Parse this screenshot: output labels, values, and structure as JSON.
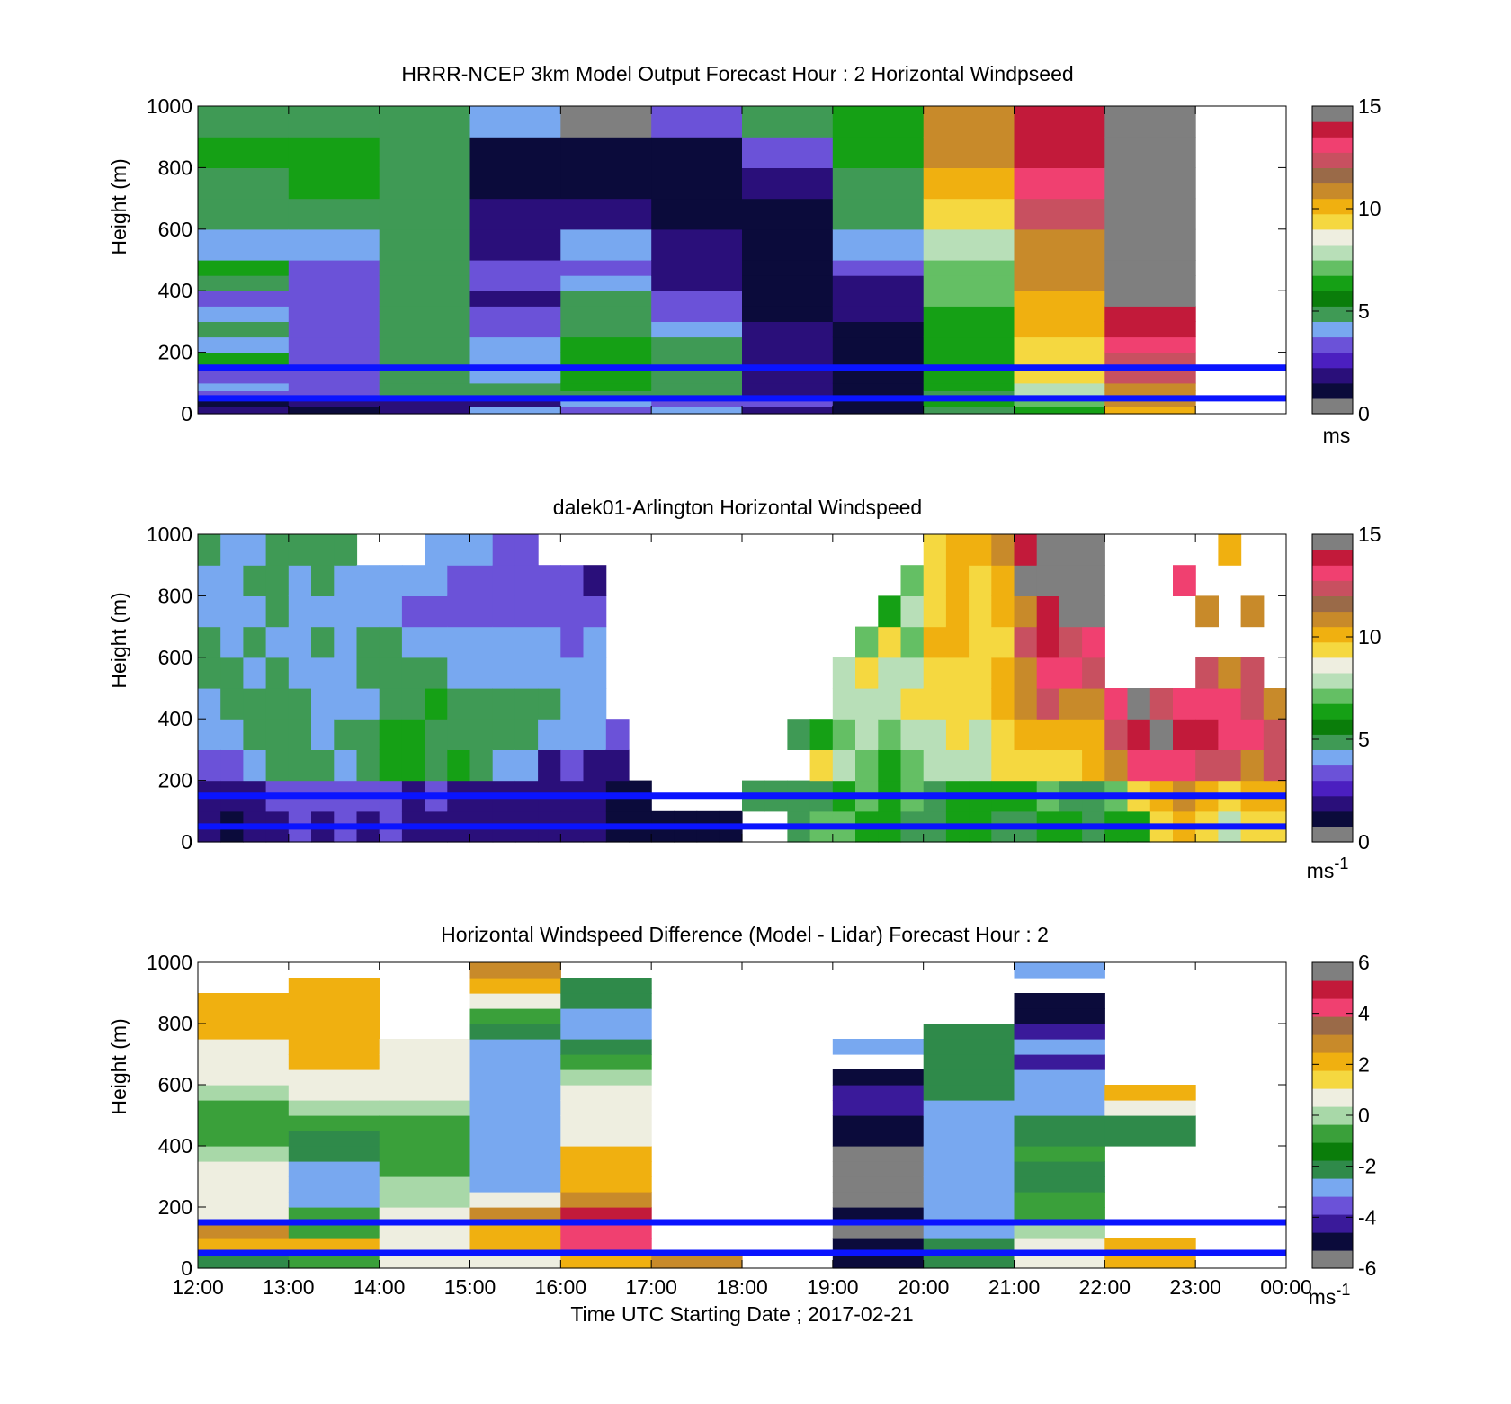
{
  "figure": {
    "x_axis_title": "Time UTC  Starting Date ; 2017-02-21",
    "x_tick_labels": [
      "12:00",
      "13:00",
      "14:00",
      "15:00",
      "16:00",
      "17:00",
      "18:00",
      "19:00",
      "20:00",
      "21:00",
      "22:00",
      "23:00",
      "00:00"
    ]
  },
  "colors": {
    "reference_line": "#0a14ff",
    "speed_colormap": [
      "#7f7f7f",
      "#0b0b3b",
      "#2a0f7a",
      "#4b1fc0",
      "#6b52d8",
      "#78a8f0",
      "#3f9a55",
      "#0a7d0a",
      "#15a015",
      "#64bf64",
      "#b8dfb8",
      "#eeeee0",
      "#f5d840",
      "#f0b010",
      "#c88a2a",
      "#9a6a48",
      "#c85060",
      "#f04070",
      "#c21a3a",
      "#7f7f7f"
    ],
    "diff_colormap": [
      "#7f7f7f",
      "#0b0b3b",
      "#3a1a9a",
      "#6b52d8",
      "#78a8f0",
      "#2f8a4a",
      "#0a7d0a",
      "#3aa03a",
      "#a8d8a8",
      "#eeeee0",
      "#f5d840",
      "#f0b010",
      "#c88a2a",
      "#9a6a48",
      "#f04070",
      "#c21a3a",
      "#7f7f7f"
    ]
  },
  "chart_data": [
    {
      "type": "heatmap",
      "title": "HRRR-NCEP 3km Model Output   Forecast Hour : 2 Horizontal Windpseed",
      "xlabel": "",
      "ylabel": "Height (m)",
      "xlim": [
        12,
        24
      ],
      "ylim": [
        0,
        1000
      ],
      "y_ticks": [
        "0",
        "200",
        "400",
        "600",
        "800",
        "1000"
      ],
      "grid": false,
      "reference_heights": [
        150,
        50
      ],
      "colorbar": {
        "ticks": [
          "0",
          "5",
          "10",
          "15"
        ],
        "unit": "ms",
        "range": [
          0,
          15
        ]
      },
      "time_bins": [
        12,
        13,
        14,
        15,
        16,
        17,
        18,
        19,
        20,
        21,
        22,
        23
      ],
      "height_bins": [
        0,
        25,
        50,
        75,
        100,
        150,
        200,
        250,
        300,
        350,
        400,
        450,
        500,
        600,
        700,
        800,
        900,
        1000
      ],
      "values": [
        [
          2,
          1,
          3,
          4,
          3,
          6,
          4,
          5,
          4,
          3,
          5,
          6,
          4,
          5,
          5,
          6,
          5
        ],
        [
          1,
          2,
          3,
          3,
          3,
          3,
          3,
          3,
          3,
          3,
          3,
          3,
          4,
          5,
          6,
          6,
          5
        ],
        [
          2,
          2,
          5,
          5,
          5,
          5,
          5,
          5,
          5,
          5,
          5,
          5,
          5,
          5,
          5,
          5,
          5
        ],
        [
          4,
          2,
          5,
          5,
          4,
          4,
          4,
          3,
          3,
          2,
          3,
          3,
          2,
          2,
          1,
          1,
          4
        ],
        [
          3,
          4,
          5,
          6,
          6,
          6,
          6,
          5,
          5,
          5,
          4,
          3,
          4,
          2,
          1,
          1,
          0
        ],
        [
          4,
          3,
          5,
          5,
          5,
          5,
          5,
          4,
          3,
          3,
          2,
          2,
          2,
          1,
          1,
          1,
          3
        ],
        [
          2,
          3,
          2,
          2,
          2,
          2,
          2,
          2,
          1,
          1,
          1,
          1,
          1,
          1,
          2,
          3,
          5
        ],
        [
          1,
          1,
          1,
          1,
          1,
          1,
          1,
          1,
          2,
          2,
          2,
          3,
          4,
          5,
          5,
          6,
          6
        ],
        [
          5,
          6,
          5,
          6,
          6,
          6,
          6,
          6,
          6,
          7,
          7,
          7,
          8,
          9,
          10,
          11,
          11
        ],
        [
          6,
          7,
          8,
          8,
          9,
          9,
          9,
          10,
          10,
          10,
          11,
          11,
          11,
          12,
          13,
          14,
          14
        ],
        [
          10,
          11,
          11,
          11,
          12,
          12,
          13,
          14,
          14,
          15,
          15,
          15,
          15,
          15,
          15,
          15,
          15
        ]
      ]
    },
    {
      "type": "heatmap",
      "title": "dalek01-Arlington  Horizontal Windspeed",
      "xlabel": "",
      "ylabel": "Height (m)",
      "xlim": [
        12,
        24
      ],
      "ylim": [
        0,
        1000
      ],
      "y_ticks": [
        "0",
        "200",
        "400",
        "600",
        "800",
        "1000"
      ],
      "grid": false,
      "reference_heights": [
        150,
        50
      ],
      "colorbar": {
        "ticks": [
          "0",
          "5",
          "10",
          "15"
        ],
        "unit": "ms",
        "unit_exponent": "-1",
        "range": [
          0,
          15
        ]
      },
      "time_bins": [
        12.0,
        12.25,
        12.5,
        12.75,
        13.0,
        13.25,
        13.5,
        13.75,
        14.0,
        14.25,
        14.5,
        14.75,
        15.0,
        15.25,
        15.5,
        15.75,
        16.0,
        16.25,
        16.5,
        16.75,
        17.0,
        17.25,
        17.5,
        17.75,
        18.0,
        18.25,
        18.5,
        18.75,
        19.0,
        19.25,
        19.5,
        19.75,
        20.0,
        20.25,
        20.5,
        20.75,
        21.0,
        21.25,
        21.5,
        21.75,
        22.0,
        22.25,
        22.5,
        22.75,
        23.0,
        23.25,
        23.5,
        23.75
      ],
      "height_bins": [
        0,
        100,
        200,
        300,
        400,
        500,
        600,
        700,
        800,
        900,
        1000
      ],
      "values": [
        [
          2,
          2,
          3,
          4,
          4,
          5,
          5,
          4,
          4,
          5
        ],
        [
          1,
          2,
          3,
          4,
          5,
          5,
          4,
          4,
          4,
          4
        ],
        [
          2,
          2,
          4,
          5,
          5,
          4,
          5,
          4,
          5,
          4
        ],
        [
          2,
          3,
          5,
          5,
          5,
          5,
          4,
          5,
          5,
          5
        ],
        [
          3,
          3,
          5,
          5,
          5,
          4,
          4,
          4,
          4,
          5
        ],
        [
          2,
          3,
          5,
          4,
          4,
          4,
          5,
          4,
          5,
          5
        ],
        [
          3,
          3,
          4,
          5,
          4,
          4,
          4,
          4,
          4,
          5
        ],
        [
          2,
          3,
          5,
          5,
          4,
          5,
          5,
          4,
          4,
          null
        ],
        [
          3,
          3,
          6,
          6,
          5,
          5,
          5,
          4,
          4,
          null
        ],
        [
          2,
          2,
          6,
          6,
          5,
          5,
          4,
          3,
          4,
          null
        ],
        [
          2,
          3,
          5,
          5,
          6,
          5,
          4,
          3,
          4,
          4
        ],
        [
          2,
          2,
          6,
          5,
          5,
          4,
          4,
          3,
          3,
          4
        ],
        [
          2,
          2,
          5,
          5,
          5,
          4,
          4,
          3,
          3,
          4
        ],
        [
          2,
          2,
          4,
          5,
          5,
          4,
          4,
          3,
          3,
          3
        ],
        [
          2,
          2,
          4,
          5,
          5,
          4,
          4,
          3,
          3,
          3
        ],
        [
          2,
          2,
          2,
          4,
          5,
          4,
          4,
          3,
          3,
          null
        ],
        [
          2,
          2,
          3,
          4,
          4,
          4,
          3,
          3,
          3,
          null
        ],
        [
          2,
          2,
          2,
          4,
          4,
          4,
          4,
          3,
          2,
          null
        ],
        [
          1,
          1,
          2,
          3,
          null,
          null,
          null,
          null,
          null,
          null
        ],
        [
          1,
          1,
          null,
          null,
          null,
          null,
          null,
          null,
          null,
          null
        ],
        [
          1,
          null,
          null,
          null,
          null,
          null,
          null,
          null,
          null,
          null
        ],
        [
          1,
          null,
          null,
          null,
          null,
          null,
          null,
          null,
          null,
          null
        ],
        [
          1,
          null,
          null,
          null,
          null,
          null,
          null,
          null,
          null,
          null
        ],
        [
          1,
          null,
          null,
          null,
          null,
          null,
          null,
          null,
          null,
          null
        ],
        [
          null,
          5,
          null,
          null,
          null,
          null,
          null,
          null,
          null,
          null
        ],
        [
          null,
          5,
          null,
          null,
          null,
          null,
          null,
          null,
          null,
          null
        ],
        [
          5,
          5,
          null,
          5,
          null,
          null,
          null,
          null,
          null,
          null
        ],
        [
          7,
          5,
          9,
          6,
          null,
          null,
          null,
          null,
          null,
          null
        ],
        [
          7,
          6,
          8,
          7,
          8,
          8,
          null,
          null,
          null,
          null
        ],
        [
          6,
          7,
          7,
          8,
          8,
          9,
          7,
          null,
          null,
          null
        ],
        [
          6,
          6,
          6,
          7,
          8,
          8,
          9,
          6,
          null,
          null
        ],
        [
          5,
          7,
          7,
          8,
          9,
          8,
          7,
          8,
          7,
          null
        ],
        [
          5,
          5,
          8,
          8,
          9,
          9,
          10,
          9,
          9,
          9
        ],
        [
          6,
          6,
          8,
          9,
          9,
          9,
          10,
          10,
          10,
          10
        ],
        [
          6,
          6,
          8,
          8,
          9,
          9,
          9,
          9,
          9,
          10
        ],
        [
          5,
          6,
          9,
          9,
          10,
          10,
          9,
          10,
          10,
          11
        ],
        [
          5,
          6,
          9,
          10,
          11,
          11,
          12,
          11,
          15,
          14
        ],
        [
          6,
          7,
          9,
          10,
          12,
          13,
          14,
          14,
          15,
          15
        ],
        [
          6,
          5,
          9,
          10,
          11,
          13,
          12,
          15,
          15,
          15
        ],
        [
          5,
          5,
          10,
          10,
          11,
          12,
          13,
          15,
          15,
          15
        ],
        [
          6,
          7,
          11,
          12,
          13,
          null,
          null,
          null,
          null,
          null
        ],
        [
          6,
          9,
          13,
          14,
          15,
          null,
          null,
          null,
          null,
          null
        ],
        [
          9,
          10,
          13,
          15,
          12,
          null,
          null,
          null,
          null,
          null
        ],
        [
          10,
          11,
          13,
          14,
          13,
          null,
          null,
          null,
          13,
          null
        ],
        [
          9,
          10,
          12,
          14,
          13,
          12,
          null,
          11,
          null,
          null
        ],
        [
          8,
          9,
          12,
          13,
          13,
          11,
          null,
          null,
          null,
          10
        ],
        [
          9,
          10,
          11,
          13,
          12,
          12,
          null,
          11,
          null,
          null
        ],
        [
          9,
          10,
          12,
          12,
          11,
          null,
          null,
          null,
          null,
          null
        ]
      ]
    },
    {
      "type": "heatmap",
      "title": "Horizontal Windspeed Difference (Model - Lidar) Forecast Hour : 2",
      "xlabel": "Time UTC  Starting Date ; 2017-02-21",
      "ylabel": "Height (m)",
      "xlim": [
        12,
        24
      ],
      "ylim": [
        0,
        1000
      ],
      "y_ticks": [
        "0",
        "200",
        "400",
        "600",
        "800",
        "1000"
      ],
      "grid": false,
      "reference_heights": [
        150,
        50
      ],
      "colorbar": {
        "ticks": [
          "-6",
          "-4",
          "-2",
          "0",
          "2",
          "4",
          "6"
        ],
        "unit": "ms",
        "unit_exponent": "-1",
        "range": [
          -6,
          6
        ]
      },
      "time_bins": [
        12,
        13,
        14,
        15,
        16,
        17,
        18,
        19,
        20,
        21,
        22,
        23
      ],
      "height_bins": [
        0,
        50,
        100,
        150,
        200,
        250,
        300,
        350,
        400,
        450,
        500,
        550,
        600,
        650,
        700,
        750,
        800,
        850,
        900,
        950,
        1000
      ],
      "values": [
        [
          -2,
          2,
          3,
          1,
          1,
          1,
          1,
          0,
          -1,
          -1,
          -1,
          0,
          1,
          1,
          1,
          2,
          2,
          2,
          null,
          null
        ],
        [
          -1,
          2,
          -1,
          -1,
          -3,
          -3,
          -3,
          -2,
          -2,
          -1,
          0,
          1,
          1,
          2,
          2,
          2,
          2,
          2,
          2,
          null
        ],
        [
          1,
          1,
          1,
          1,
          0,
          0,
          -1,
          -1,
          -1,
          -1,
          0,
          1,
          1,
          1,
          1,
          null,
          null,
          null,
          null,
          null
        ],
        [
          1,
          2,
          2,
          3,
          1,
          -3,
          -3,
          -3,
          -3,
          -3,
          -3,
          -3,
          -3,
          -3,
          -3,
          -2,
          -1,
          1,
          2,
          3
        ],
        [
          2,
          4,
          4,
          5,
          3,
          2,
          2,
          2,
          1,
          1,
          1,
          1,
          0,
          -1,
          -2,
          -3,
          -3,
          -2,
          -2,
          null
        ],
        [
          3,
          null,
          null,
          null,
          null,
          null,
          null,
          null,
          null,
          null,
          null,
          null,
          null,
          null,
          null,
          null,
          null,
          null,
          null,
          null
        ],
        [
          null,
          null,
          null,
          null,
          null,
          null,
          null,
          null,
          null,
          null,
          null,
          null,
          null,
          null,
          null,
          null,
          null,
          null,
          null,
          null
        ],
        [
          -5,
          -5,
          -6,
          -5,
          6,
          6,
          6,
          6,
          -5,
          -5,
          -4,
          -4,
          -5,
          null,
          -3,
          null,
          null,
          null,
          null,
          null
        ],
        [
          -2,
          -2,
          -3,
          -3,
          -3,
          -3,
          -3,
          -3,
          -3,
          -3,
          -3,
          -2,
          -2,
          -2,
          -2,
          -2,
          null,
          null,
          null,
          null
        ],
        [
          1,
          1,
          0,
          -1,
          -1,
          -2,
          -2,
          -1,
          -2,
          -2,
          -3,
          -3,
          -3,
          -4,
          -3,
          -4,
          -5,
          -5,
          null,
          -3
        ],
        [
          2,
          2,
          null,
          null,
          null,
          null,
          null,
          null,
          -2,
          -2,
          1,
          2,
          null,
          null,
          null,
          null,
          null,
          null,
          null,
          null
        ]
      ]
    }
  ]
}
